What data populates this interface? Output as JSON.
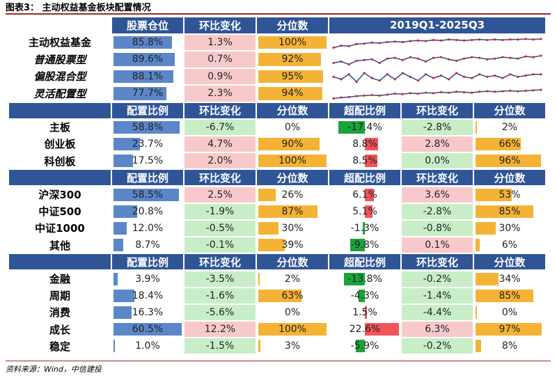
{
  "caption": "图表3：  主动权益基金板块配置情况",
  "source": "资料来源：Wind，中信建投",
  "colors": {
    "header": "#2f5597",
    "blue_bar": "#5b87c8",
    "orange_bar": "#f5b335",
    "red_bar": "#f2545b",
    "green_bar": "#19a33a",
    "pink": "#f8c9cb",
    "green_bg": "#c8eec8"
  },
  "section1": {
    "headers": [
      "股票仓位",
      "环比变化",
      "分位数",
      "2019Q1-2025Q3"
    ],
    "rows": [
      {
        "label": "主动权益基金",
        "italic": false,
        "position": "85.8%",
        "position_val": 85.8,
        "change": "1.3%",
        "change_val": 1.3,
        "pct": "100%",
        "pct_val": 100,
        "spark": [
          69,
          73,
          72,
          76,
          77,
          79,
          78,
          80,
          81,
          80,
          82,
          83,
          82,
          84,
          83,
          85,
          84,
          83,
          84,
          85,
          84,
          85,
          84,
          85,
          85,
          86,
          85,
          86
        ]
      },
      {
        "label": "普通股票型",
        "italic": true,
        "position": "89.6%",
        "position_val": 89.6,
        "change": "0.7%",
        "change_val": 0.7,
        "pct": "92%",
        "pct_val": 92,
        "spark": [
          80,
          82,
          78,
          83,
          84,
          85,
          80,
          86,
          87,
          84,
          88,
          86,
          82,
          87,
          88,
          85,
          83,
          86,
          88,
          87,
          85,
          86,
          88,
          87,
          86,
          89,
          88,
          90
        ]
      },
      {
        "label": "偏股混合型",
        "italic": true,
        "position": "88.1%",
        "position_val": 88.1,
        "change": "0.9%",
        "change_val": 0.9,
        "pct": "95%",
        "pct_val": 95,
        "spark": [
          86,
          84,
          88,
          82,
          89,
          85,
          83,
          88,
          84,
          89,
          86,
          83,
          88,
          85,
          87,
          84,
          89,
          86,
          85,
          88,
          86,
          87,
          85,
          88,
          86,
          87,
          88,
          88
        ]
      },
      {
        "label": "灵活配置型",
        "italic": true,
        "position": "77.7%",
        "position_val": 77.7,
        "change": "2.3%",
        "change_val": 2.3,
        "pct": "94%",
        "pct_val": 94,
        "spark": [
          60,
          62,
          63,
          65,
          66,
          67,
          66,
          68,
          70,
          69,
          71,
          70,
          72,
          71,
          73,
          72,
          74,
          73,
          72,
          74,
          75,
          74,
          75,
          76,
          75,
          76,
          77,
          78
        ]
      }
    ]
  },
  "section2": {
    "headers": [
      "配置比例",
      "环比变化",
      "分位数",
      "超配比例",
      "环比变化",
      "分位数"
    ],
    "rows": [
      {
        "label": "主板",
        "alloc": "58.8%",
        "alloc_val": 58.8,
        "chg": "-6.7%",
        "chg_val": -6.7,
        "pct": "0%",
        "pct_val": 0,
        "over": "-17.4%",
        "over_val": -17.4,
        "ochg": "-2.8%",
        "ochg_val": -2.8,
        "opct": "2%",
        "opct_val": 2
      },
      {
        "label": "创业板",
        "alloc": "23.7%",
        "alloc_val": 23.7,
        "chg": "4.7%",
        "chg_val": 4.7,
        "pct": "90%",
        "pct_val": 90,
        "over": "8.8%",
        "over_val": 8.8,
        "ochg": "2.8%",
        "ochg_val": 2.8,
        "opct": "66%",
        "opct_val": 66
      },
      {
        "label": "科创板",
        "alloc": "17.5%",
        "alloc_val": 17.5,
        "chg": "2.0%",
        "chg_val": 2.0,
        "pct": "100%",
        "pct_val": 100,
        "over": "8.5%",
        "over_val": 8.5,
        "ochg": "0.0%",
        "ochg_val": 0.0,
        "opct": "96%",
        "opct_val": 96
      }
    ]
  },
  "section3": {
    "headers": [
      "配置比例",
      "环比变化",
      "分位数",
      "超配比例",
      "环比变化",
      "分位数"
    ],
    "rows": [
      {
        "label": "沪深300",
        "alloc": "58.5%",
        "alloc_val": 58.5,
        "chg": "2.5%",
        "chg_val": 2.5,
        "pct": "26%",
        "pct_val": 26,
        "over": "6.1%",
        "over_val": 6.1,
        "ochg": "3.6%",
        "ochg_val": 3.6,
        "opct": "53%",
        "opct_val": 53
      },
      {
        "label": "中证500",
        "alloc": "20.8%",
        "alloc_val": 20.8,
        "chg": "-1.9%",
        "chg_val": -1.9,
        "pct": "87%",
        "pct_val": 87,
        "over": "5.1%",
        "over_val": 5.1,
        "ochg": "-2.8%",
        "ochg_val": -2.8,
        "opct": "85%",
        "opct_val": 85
      },
      {
        "label": "中证1000",
        "alloc": "12.0%",
        "alloc_val": 12.0,
        "chg": "-0.5%",
        "chg_val": -0.5,
        "pct": "30%",
        "pct_val": 30,
        "over": "-1.3%",
        "over_val": -1.3,
        "ochg": "-0.8%",
        "ochg_val": -0.8,
        "opct": "30%",
        "opct_val": 30
      },
      {
        "label": "其他",
        "alloc": "8.7%",
        "alloc_val": 8.7,
        "chg": "-0.1%",
        "chg_val": -0.1,
        "pct": "39%",
        "pct_val": 39,
        "over": "-9.8%",
        "over_val": -9.8,
        "ochg": "0.1%",
        "ochg_val": 0.1,
        "opct": "6%",
        "opct_val": 6
      }
    ]
  },
  "section4": {
    "headers": [
      "配置比例",
      "环比变化",
      "分位数",
      "超配比例",
      "环比变化",
      "分位数"
    ],
    "rows": [
      {
        "label": "金融",
        "alloc": "3.9%",
        "alloc_val": 3.9,
        "chg": "-3.5%",
        "chg_val": -3.5,
        "pct": "2%",
        "pct_val": 2,
        "over": "-13.8%",
        "over_val": -13.8,
        "ochg": "-0.2%",
        "ochg_val": -0.2,
        "opct": "34%",
        "opct_val": 34
      },
      {
        "label": "周期",
        "alloc": "18.4%",
        "alloc_val": 18.4,
        "chg": "-1.6%",
        "chg_val": -1.6,
        "pct": "63%",
        "pct_val": 63,
        "over": "-4.3%",
        "over_val": -4.3,
        "ochg": "-1.4%",
        "ochg_val": -1.4,
        "opct": "85%",
        "opct_val": 85
      },
      {
        "label": "消费",
        "alloc": "16.3%",
        "alloc_val": 16.3,
        "chg": "-5.6%",
        "chg_val": -5.6,
        "pct": "0%",
        "pct_val": 0,
        "over": "1.5%",
        "over_val": 1.5,
        "ochg": "-4.4%",
        "ochg_val": -4.4,
        "opct": "0%",
        "opct_val": 0
      },
      {
        "label": "成长",
        "alloc": "60.5%",
        "alloc_val": 60.5,
        "chg": "12.2%",
        "chg_val": 12.2,
        "pct": "100%",
        "pct_val": 100,
        "over": "22.6%",
        "over_val": 22.6,
        "ochg": "6.3%",
        "ochg_val": 6.3,
        "opct": "97%",
        "opct_val": 97
      },
      {
        "label": "稳定",
        "alloc": "1.0%",
        "alloc_val": 1.0,
        "chg": "-1.5%",
        "chg_val": -1.5,
        "pct": "3%",
        "pct_val": 3,
        "over": "-5.9%",
        "over_val": -5.9,
        "ochg": "-0.2%",
        "ochg_val": -0.2,
        "opct": "8%",
        "opct_val": 8
      }
    ]
  }
}
